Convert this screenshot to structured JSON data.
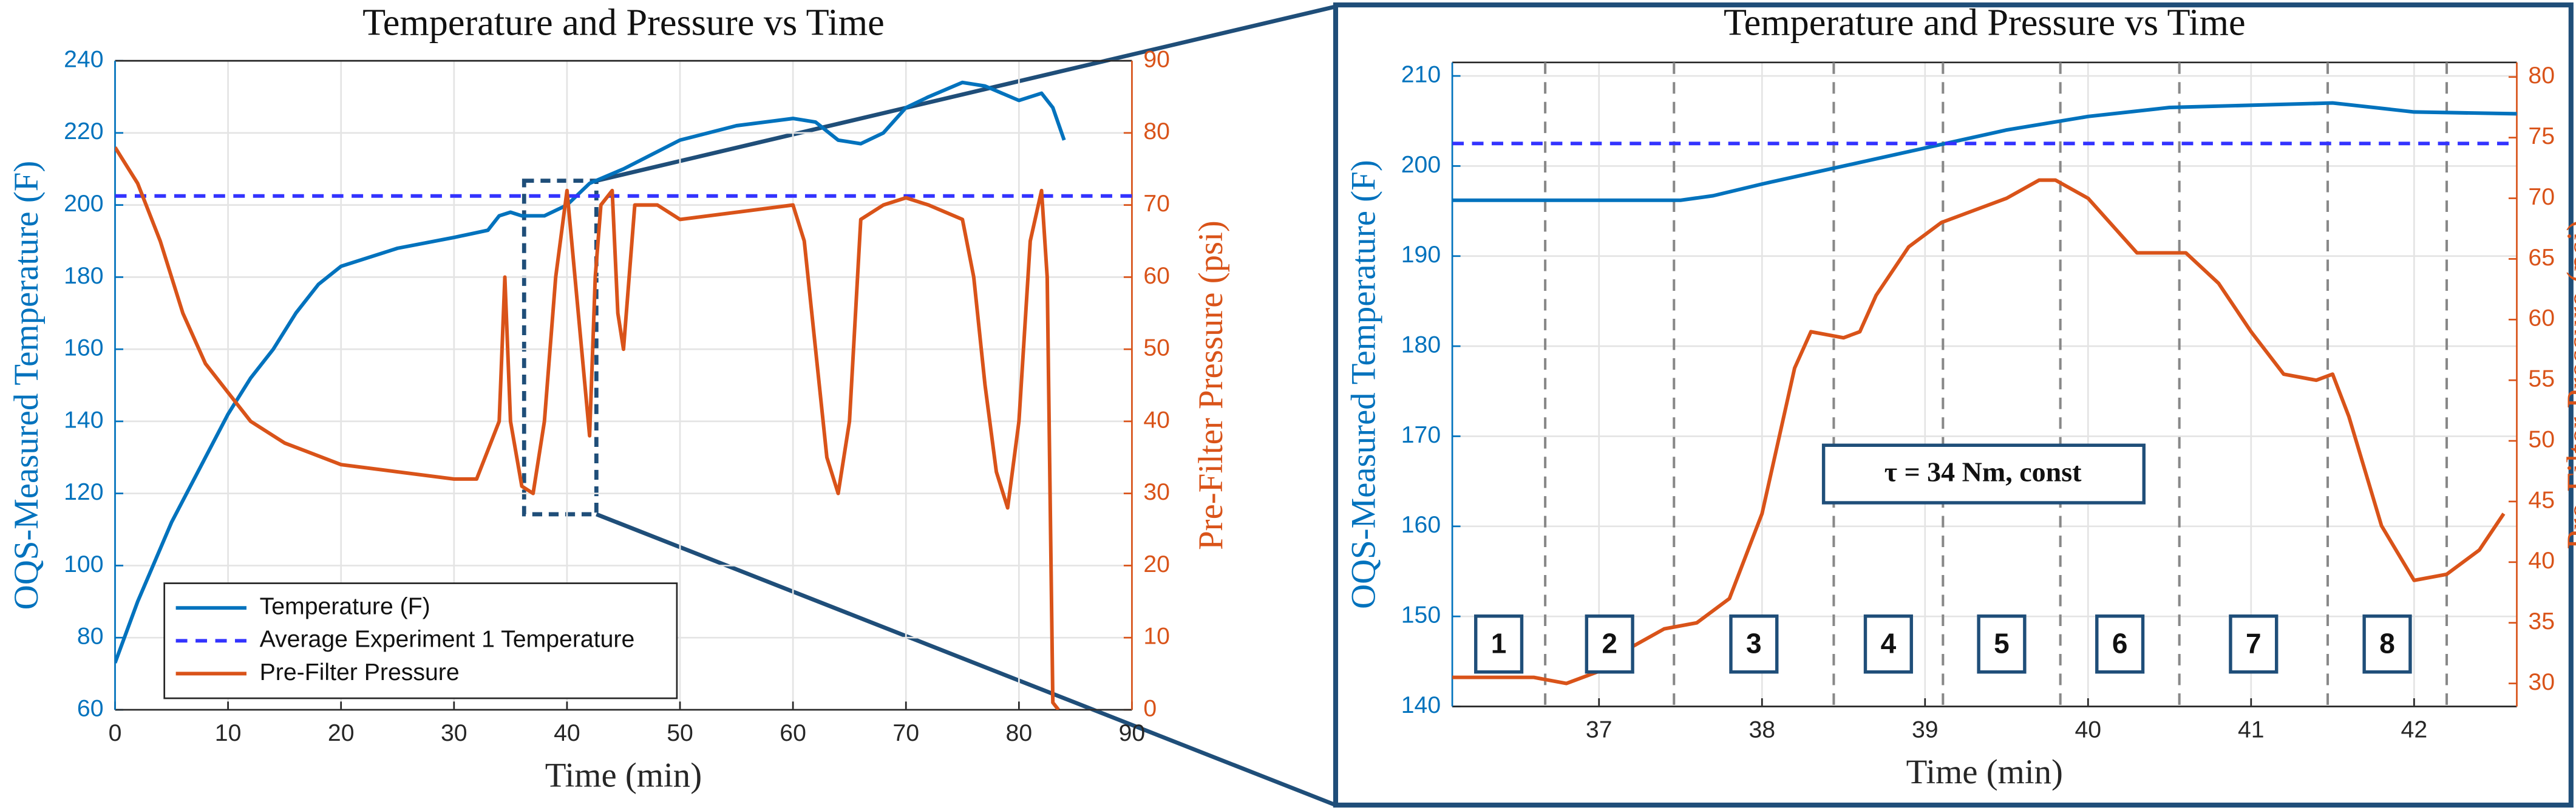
{
  "chart_data": [
    {
      "type": "line",
      "title": "Temperature and Pressure vs Time",
      "x_label": "Time (min)",
      "y_label": "OQS-Measured Temperature (F)",
      "y2_label": "Pre-Filter Pressure (psi)",
      "xlim": [
        0,
        90
      ],
      "xticks": [
        0,
        10,
        20,
        30,
        40,
        50,
        60,
        70,
        80,
        90
      ],
      "ylim": [
        60,
        240
      ],
      "yticks": [
        60,
        80,
        100,
        120,
        140,
        160,
        180,
        200,
        220,
        240
      ],
      "y2lim": [
        0,
        90
      ],
      "y2ticks": [
        0,
        10,
        20,
        30,
        40,
        50,
        60,
        70,
        80,
        90
      ],
      "grid": true,
      "legend": "lower left",
      "series": [
        {
          "name": "Temperature (F)",
          "color": "#0072bd",
          "style": "solid",
          "x": [
            0,
            2,
            5,
            8,
            10,
            12,
            14,
            16,
            18,
            20,
            25,
            30,
            33,
            34,
            35,
            36,
            38,
            40,
            42,
            45,
            50,
            55,
            60,
            62,
            64,
            66,
            68,
            70,
            72,
            75,
            77,
            80,
            82,
            83,
            84
          ],
          "values": [
            73,
            90,
            112,
            130,
            142,
            152,
            160,
            170,
            178,
            183,
            188,
            191,
            193,
            197,
            198,
            197,
            197,
            200,
            206,
            210,
            218,
            222,
            224,
            223,
            218,
            217,
            220,
            227,
            230,
            234,
            233,
            229,
            231,
            227,
            218
          ]
        },
        {
          "name": "Average Experiment 1 Temperature",
          "color": "#3333ff",
          "style": "dashed",
          "x": [
            0,
            90
          ],
          "values": [
            202.5,
            202.5
          ]
        },
        {
          "name": "Pre-Filter Pressure",
          "color": "#d95319",
          "style": "solid",
          "axis": "y2",
          "x": [
            0,
            2,
            4,
            6,
            8,
            10,
            12,
            15,
            20,
            25,
            30,
            32,
            33,
            34,
            34.5,
            35,
            36,
            37,
            38,
            39,
            40,
            41,
            42,
            42.5,
            43,
            44,
            44.5,
            45,
            46,
            48,
            50,
            55,
            60,
            61,
            62,
            63,
            64,
            65,
            66,
            68,
            70,
            72,
            75,
            76,
            77,
            78,
            79,
            80,
            81,
            82,
            82.5,
            83,
            83.5
          ],
          "values": [
            78,
            73,
            65,
            55,
            48,
            44,
            40,
            37,
            34,
            33,
            32,
            32,
            36,
            40,
            60,
            40,
            31,
            30,
            40,
            60,
            72,
            55,
            38,
            60,
            70,
            72,
            55,
            50,
            70,
            70,
            68,
            69,
            70,
            65,
            50,
            35,
            30,
            40,
            68,
            70,
            71,
            70,
            68,
            60,
            45,
            33,
            28,
            40,
            65,
            72,
            60,
            1,
            0
          ]
        }
      ]
    },
    {
      "type": "line",
      "title": "Temperature and Pressure vs Time",
      "x_label": "Time (min)",
      "y_label": "OQS-Measured Temperature (F)",
      "y2_label": "Pre-Filter Pressure (psi)",
      "xlim": [
        36.1,
        42.63
      ],
      "xticks": [
        37,
        38,
        39,
        40,
        41,
        42
      ],
      "ylim": [
        140,
        211.5
      ],
      "yticks": [
        140,
        150,
        160,
        170,
        180,
        190,
        200,
        210
      ],
      "y2lim": [
        28.1,
        81.2
      ],
      "y2ticks": [
        30,
        35,
        40,
        45,
        50,
        55,
        60,
        65,
        70,
        75,
        80
      ],
      "grid": true,
      "annotation": "τ = 34 Nm, const",
      "phase_boundaries": [
        36.67,
        37.46,
        38.44,
        39.11,
        39.83,
        40.56,
        41.47,
        42.2
      ],
      "phase_labels": [
        "1",
        "2",
        "3",
        "4",
        "5",
        "6",
        "7",
        "8"
      ],
      "series": [
        {
          "name": "Temperature (F)",
          "color": "#0072bd",
          "style": "solid",
          "x": [
            36.1,
            37.5,
            37.7,
            38,
            38.5,
            39,
            39.5,
            40,
            40.5,
            41.5,
            42,
            42.63
          ],
          "values": [
            196.2,
            196.2,
            196.7,
            198,
            200,
            202,
            204,
            205.5,
            206.5,
            207,
            206,
            205.8
          ]
        },
        {
          "name": "Average Experiment 1 Temperature",
          "color": "#3333ff",
          "style": "dashed",
          "x": [
            36.1,
            42.63
          ],
          "values": [
            202.5,
            202.5
          ]
        },
        {
          "name": "Pre-Filter Pressure",
          "color": "#d95319",
          "style": "solid",
          "axis": "y2",
          "x": [
            36.1,
            36.6,
            36.8,
            37,
            37.2,
            37.4,
            37.6,
            37.8,
            38,
            38.1,
            38.2,
            38.3,
            38.5,
            38.6,
            38.7,
            38.9,
            39,
            39.1,
            39.3,
            39.5,
            39.7,
            39.8,
            40,
            40.2,
            40.3,
            40.6,
            40.8,
            41,
            41.2,
            41.4,
            41.5,
            41.6,
            41.8,
            42,
            42.2,
            42.4,
            42.55
          ],
          "values": [
            30.5,
            30.5,
            30,
            31,
            33,
            34.5,
            35,
            37,
            44,
            50,
            56,
            59,
            58.5,
            59,
            62,
            66,
            67,
            68,
            69,
            70,
            71.5,
            71.5,
            70,
            67,
            65.5,
            65.5,
            63,
            59,
            55.5,
            55,
            55.5,
            52,
            43,
            38.5,
            39,
            41,
            44
          ]
        }
      ]
    }
  ]
}
